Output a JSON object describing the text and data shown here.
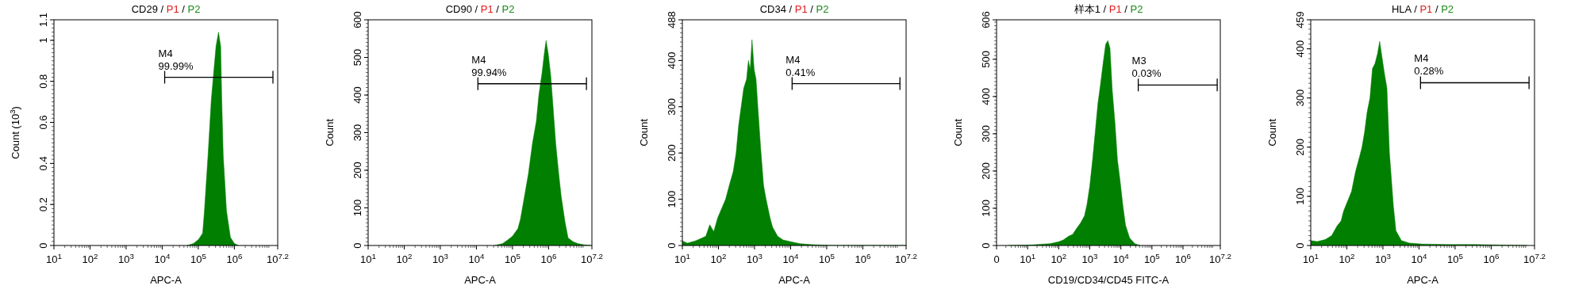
{
  "chart_data": [
    {
      "type": "area",
      "title": "CD29 / P1 / P2",
      "xlabel": "APC-A",
      "ylabel": "Count (10$^{3}$)",
      "log": "x",
      "xlim": [
        10,
        15848932
      ],
      "ylim": [
        0,
        1.1
      ],
      "xticks": [
        {
          "value": 10,
          "label": "10$^{1}$"
        },
        {
          "value": 100,
          "label": "10$^{2}$"
        },
        {
          "value": 1000,
          "label": "10$^{3}$"
        },
        {
          "value": 10000,
          "label": "10$^{4}$"
        },
        {
          "value": 100000,
          "label": "10$^{5}$"
        },
        {
          "value": 1000000,
          "label": "10$^{6}$"
        },
        {
          "value": 15848932,
          "label": "10$^{7.2}$"
        }
      ],
      "yticks": [
        0,
        0.2,
        0.4,
        0.6,
        0.8,
        1,
        1.1
      ],
      "series": [
        {
          "color": "#007f00",
          "x": [
            49000,
            74000,
            102000,
            132000,
            148000,
            186000,
            229000,
            309000,
            363000,
            417000,
            447000,
            490000,
            603000,
            776000,
            1000000,
            1290000
          ],
          "values": [
            0,
            0.01,
            0.03,
            0.06,
            0.17,
            0.44,
            0.71,
            0.97,
            1.04,
            0.97,
            0.71,
            0.44,
            0.17,
            0.04,
            0.01,
            0
          ]
        },
        {
          "type": "line",
          "color": "#000000",
          "x": [
            11700,
            11700000
          ],
          "values": [
            0.82,
            0.82
          ]
        }
      ],
      "annotations": [
        "M4",
        "99.99%"
      ]
    },
    {
      "type": "area",
      "title": "CD90 / P1 / P2",
      "xlabel": "APC-A",
      "ylabel": "Count",
      "log": "x",
      "xlim": [
        10,
        15848932
      ],
      "ylim": [
        0,
        600
      ],
      "xticks": [
        {
          "value": 10,
          "label": "10$^{1}$"
        },
        {
          "value": 100,
          "label": "10$^{2}$"
        },
        {
          "value": 1000,
          "label": "10$^{3}$"
        },
        {
          "value": 10000,
          "label": "10$^{4}$"
        },
        {
          "value": 100000,
          "label": "10$^{5}$"
        },
        {
          "value": 1000000,
          "label": "10$^{6}$"
        },
        {
          "value": 15848932,
          "label": "10$^{7.2}$"
        }
      ],
      "yticks": [
        0,
        100,
        200,
        300,
        400,
        500,
        600
      ],
      "series": [
        {
          "color": "#007f00",
          "x": [
            31600,
            52500,
            74000,
            100000,
            141000,
            166000,
            214000,
            275000,
            355000,
            457000,
            537000,
            661000,
            759000,
            851000,
            977000,
            1150000,
            1350000,
            1580000,
            1910000,
            2240000,
            2880000,
            3470000,
            4790000,
            6610000,
            9330000,
            15100000
          ],
          "values": [
            0,
            5,
            15,
            25,
            45,
            70,
            130,
            190,
            270,
            330,
            400,
            460,
            510,
            545,
            510,
            450,
            360,
            270,
            190,
            130,
            60,
            20,
            10,
            5,
            2,
            0
          ]
        },
        {
          "type": "line",
          "color": "#000000",
          "x": [
            11000,
            11200000
          ],
          "values": [
            430,
            430
          ]
        }
      ],
      "annotations": [
        "M4",
        "99.94%"
      ]
    },
    {
      "type": "area",
      "title": "CD34 / P1 / P2",
      "xlabel": "APC-A",
      "ylabel": "Count",
      "log": "x",
      "xlim": [
        10,
        15848932
      ],
      "ylim": [
        0,
        488
      ],
      "xticks": [
        {
          "value": 10,
          "label": "10$^{1}$"
        },
        {
          "value": 100,
          "label": "10$^{2}$"
        },
        {
          "value": 1000,
          "label": "10$^{3}$"
        },
        {
          "value": 10000,
          "label": "10$^{4}$"
        },
        {
          "value": 100000,
          "label": "10$^{5}$"
        },
        {
          "value": 1000000,
          "label": "10$^{6}$"
        },
        {
          "value": 15848932,
          "label": "10$^{7.2}$"
        }
      ],
      "yticks": [
        0,
        100,
        200,
        300,
        400,
        488
      ],
      "series": [
        {
          "color": "#007f00",
          "x": [
            10,
            13.8,
            22.9,
            32.4,
            44.7,
            57.5,
            74.1,
            95.5,
            123,
            158,
            200,
            257,
            309,
            363,
            427,
            501,
            603,
            676,
            759,
            851,
            977,
            1100,
            1260,
            1480,
            1780,
            2090,
            2690,
            3160,
            4370,
            6170,
            10200,
            18200,
            35500,
            135000,
            15800000
          ],
          "values": [
            10,
            5,
            10,
            15,
            20,
            45,
            30,
            60,
            80,
            100,
            130,
            160,
            200,
            260,
            300,
            340,
            360,
            400,
            380,
            445,
            380,
            360,
            290,
            210,
            130,
            100,
            60,
            40,
            20,
            12,
            8,
            4,
            2,
            0,
            0
          ]
        },
        {
          "type": "line",
          "color": "#000000",
          "x": [
            11000,
            10700000
          ],
          "values": [
            350,
            350
          ]
        }
      ],
      "annotations": [
        "M4",
        "0.41%"
      ]
    },
    {
      "type": "area",
      "title": "样本1 / P1 / P2",
      "xlabel": "CD19/CD34/CD45 FITC-A",
      "ylabel": "Count",
      "log": "x",
      "xlim": [
        0,
        15848932
      ],
      "ylim": [
        0,
        606
      ],
      "xticks": [
        0,
        {
          "value": 10,
          "label": "10$^{1}$"
        },
        {
          "value": 100,
          "label": "10$^{2}$"
        },
        {
          "value": 1000,
          "label": "10$^{3}$"
        },
        {
          "value": 10000,
          "label": "10$^{4}$"
        },
        {
          "value": 100000,
          "label": "10$^{5}$"
        },
        {
          "value": 1000000,
          "label": "10$^{6}$"
        },
        {
          "value": 15848932,
          "label": "10$^{7.2}$"
        }
      ],
      "yticks": [
        0,
        100,
        200,
        300,
        400,
        500,
        606
      ],
      "series": [
        {
          "color": "#007f00",
          "x": [
            2.3,
            10,
            16.2,
            52.5,
            100,
            141,
            209,
            282,
            372,
            501,
            676,
            813,
            1000,
            1230,
            1480,
            1820,
            2190,
            2690,
            3240,
            3800,
            4470,
            5250,
            6460,
            7760,
            9550,
            11500,
            14100,
            19100,
            28200,
            41700
          ],
          "values": [
            0,
            1,
            2,
            5,
            10,
            15,
            25,
            30,
            45,
            60,
            80,
            110,
            160,
            230,
            300,
            380,
            430,
            490,
            540,
            550,
            530,
            420,
            330,
            230,
            170,
            110,
            55,
            20,
            5,
            0
          ]
        },
        {
          "type": "line",
          "color": "#000000",
          "x": [
            36300,
            12600000
          ],
          "values": [
            431,
            431
          ]
        }
      ],
      "annotations": [
        "M3",
        "0.03%"
      ]
    },
    {
      "type": "area",
      "title": "HLA / P1 / P2",
      "xlabel": "APC-A",
      "ylabel": "Count",
      "log": "x",
      "xlim": [
        10,
        15848932
      ],
      "ylim": [
        0,
        459
      ],
      "xticks": [
        {
          "value": 10,
          "label": "10$^{1}$"
        },
        {
          "value": 100,
          "label": "10$^{2}$"
        },
        {
          "value": 1000,
          "label": "10$^{3}$"
        },
        {
          "value": 10000,
          "label": "10$^{4}$"
        },
        {
          "value": 100000,
          "label": "10$^{5}$"
        },
        {
          "value": 1000000,
          "label": "10$^{6}$"
        },
        {
          "value": 15848932,
          "label": "10$^{7.2}$"
        }
      ],
      "yticks": [
        0,
        100,
        200,
        300,
        400,
        459
      ],
      "series": [
        {
          "color": "#007f00",
          "x": [
            10,
            15.1,
            25.1,
            38,
            53.7,
            69.2,
            81.3,
            105,
            135,
            174,
            224,
            263,
            309,
            363,
            437,
            513,
            603,
            708,
            813,
            912,
            1100,
            1290,
            1510,
            1950,
            2290,
            3240,
            5370,
            12300,
            66100,
            355000,
            1860000,
            10000000
          ],
          "values": [
            10,
            8,
            12,
            20,
            40,
            50,
            70,
            90,
            110,
            150,
            180,
            200,
            230,
            270,
            300,
            360,
            370,
            390,
            415,
            390,
            350,
            320,
            190,
            80,
            30,
            10,
            5,
            3,
            2,
            2,
            1,
            0
          ]
        },
        {
          "type": "line",
          "color": "#000000",
          "x": [
            11000,
            11200000
          ],
          "values": [
            331,
            331
          ]
        }
      ],
      "annotations": [
        "M4",
        "0.28%"
      ]
    }
  ]
}
